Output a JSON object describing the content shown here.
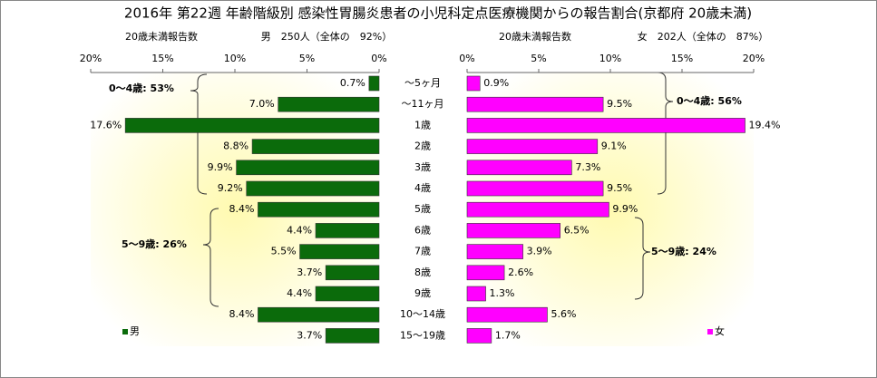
{
  "chart_data": {
    "type": "butterfly",
    "title": "2016年 第22週 年齢階級別 感染性胃腸炎患者の小児科定点医療機関からの報告割合(京都府 20歳未満)",
    "headers": [
      {
        "label": "20歳未満報告数",
        "text": "男　250人（全体の　92%）"
      },
      {
        "label": "20歳未満報告数",
        "text": "女　202人（全体の　87%）"
      }
    ],
    "categories": [
      "～5ヶ月",
      "～11ヶ月",
      "1歳",
      "2歳",
      "3歳",
      "4歳",
      "5歳",
      "6歳",
      "7歳",
      "8歳",
      "9歳",
      "10～14歳",
      "15～19歳"
    ],
    "series": [
      {
        "name": "男",
        "color": "#0b6b0b",
        "values": [
          0.7,
          7.0,
          17.6,
          8.8,
          9.9,
          9.2,
          8.4,
          4.4,
          5.5,
          3.7,
          4.4,
          8.4,
          3.7
        ],
        "value_labels": [
          "0.7%",
          "7.0%",
          "17.6%",
          "8.8%",
          "9.9%",
          "9.2%",
          "8.4%",
          "4.4%",
          "5.5%",
          "3.7%",
          "4.4%",
          "8.4%",
          "3.7%"
        ]
      },
      {
        "name": "女",
        "color": "#ff00ff",
        "values": [
          0.9,
          9.5,
          19.4,
          9.1,
          7.3,
          9.5,
          9.9,
          6.5,
          3.9,
          2.6,
          1.3,
          5.6,
          1.7
        ],
        "value_labels": [
          "0.9%",
          "9.5%",
          "19.4%",
          "9.1%",
          "7.3%",
          "9.5%",
          "9.9%",
          "6.5%",
          "3.9%",
          "2.6%",
          "1.3%",
          "5.6%",
          "1.7%"
        ]
      }
    ],
    "xlim": [
      0,
      20
    ],
    "xticks": [
      {
        "value": 0,
        "label": "0%"
      },
      {
        "value": 5,
        "label": "5%"
      },
      {
        "value": 10,
        "label": "10%"
      },
      {
        "value": 15,
        "label": "15%"
      },
      {
        "value": 20,
        "label": "20%"
      }
    ],
    "annotations": [
      "0～4歳: 53%",
      "5～9歳: 26%",
      "0～4歳: 56%",
      "5～9歳: 24%"
    ]
  }
}
